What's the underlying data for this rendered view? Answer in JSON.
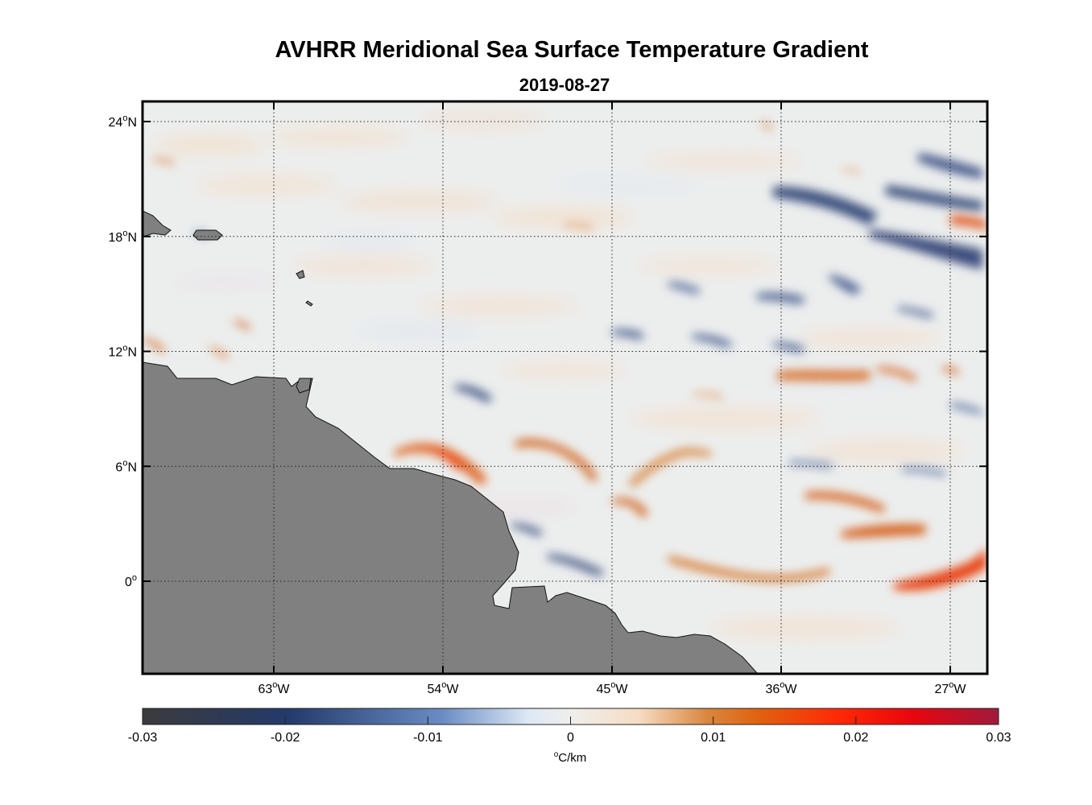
{
  "title": "AVHRR Meridional Sea Surface Temperature Gradient",
  "subtitle": "2019-08-27",
  "map": {
    "longitude_ticks": [
      {
        "value": -63,
        "label": "63",
        "hemisphere": "W"
      },
      {
        "value": -54,
        "label": "54",
        "hemisphere": "W"
      },
      {
        "value": -45,
        "label": "45",
        "hemisphere": "W"
      },
      {
        "value": -36,
        "label": "36",
        "hemisphere": "W"
      },
      {
        "value": -27,
        "label": "27",
        "hemisphere": "W"
      }
    ],
    "latitude_ticks": [
      {
        "value": 24,
        "label": "24",
        "hemisphere": "N"
      },
      {
        "value": 18,
        "label": "18",
        "hemisphere": "N"
      },
      {
        "value": 12,
        "label": "12",
        "hemisphere": "N"
      },
      {
        "value": 6,
        "label": "6",
        "hemisphere": "N"
      },
      {
        "value": 0,
        "label": "0",
        "hemisphere": ""
      }
    ],
    "degree_symbol": "o",
    "land_color": "#808080",
    "ocean_background": "#eceeee"
  },
  "colorbar": {
    "min": -0.03,
    "max": 0.03,
    "tick_labels": [
      "-0.03",
      "-0.02",
      "-0.01",
      "0",
      "0.01",
      "0.02",
      "0.03"
    ],
    "units_degree": "o",
    "units": "C/km",
    "colors": [
      "#3a3a3a",
      "#233866",
      "#5c7dba",
      "#dfe9f5",
      "#f0efec",
      "#f5dfc8",
      "#d97a2a",
      "#ee5a10",
      "#ff1a05",
      "#a31838"
    ]
  }
}
